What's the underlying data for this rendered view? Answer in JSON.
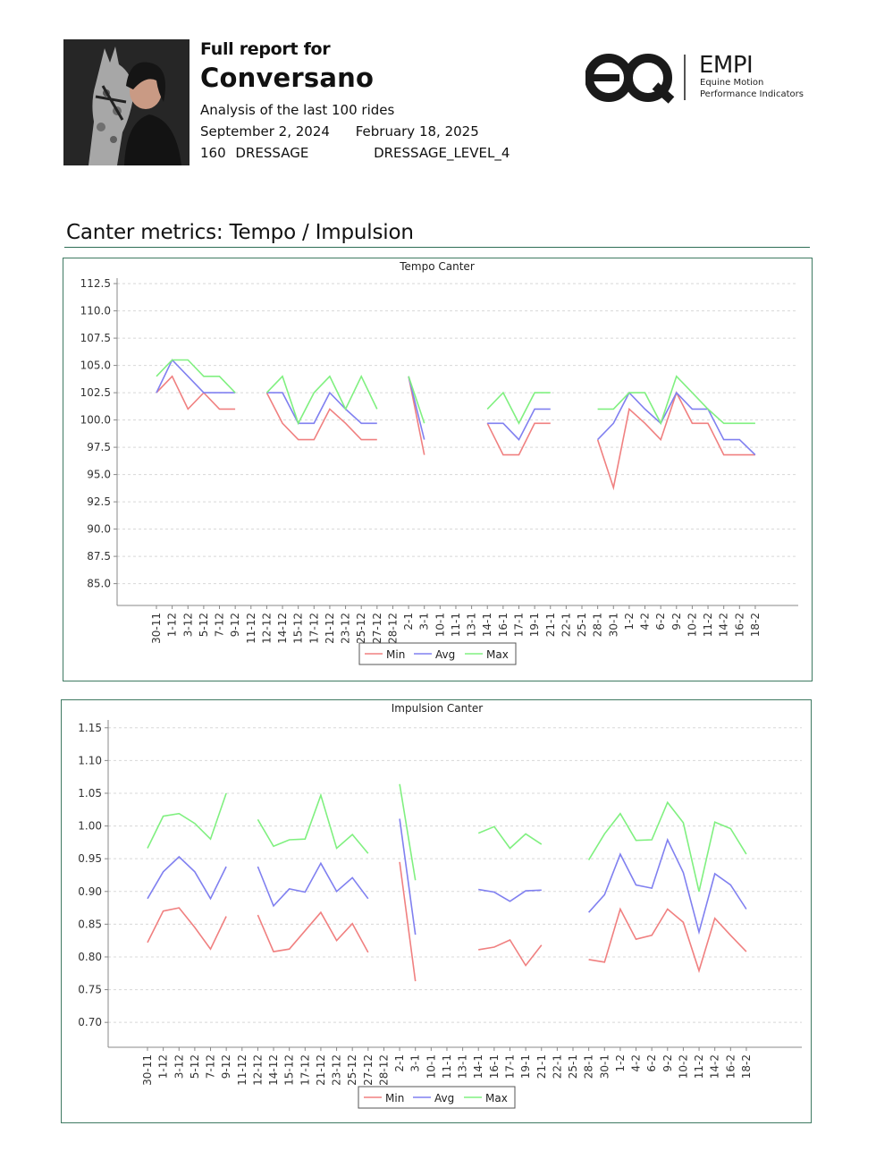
{
  "header": {
    "title_prefix": "Full report for",
    "horse_name": "Conversano",
    "subtitle": "Analysis of the last 100 rides",
    "date_from": "September 2, 2024",
    "date_to": "February 18, 2025",
    "count": "160",
    "discipline": "DRESSAGE",
    "level": "DRESSAGE_LEVEL_4"
  },
  "logo": {
    "mark": "eq",
    "brand": "EMPI",
    "tagline_1": "Equine Motion",
    "tagline_2": "Performance Indicators"
  },
  "section_title": "Canter metrics: Tempo / Impulsion",
  "colors": {
    "min": "#f08080",
    "avg": "#8080f0",
    "max": "#80f080",
    "grid": "#d8d8d8"
  },
  "chart_data": [
    {
      "type": "line",
      "title": "Tempo Canter",
      "categories": [
        "30-11",
        "1-12",
        "3-12",
        "5-12",
        "7-12",
        "9-12",
        "11-12",
        "12-12",
        "14-12",
        "15-12",
        "17-12",
        "21-12",
        "23-12",
        "25-12",
        "27-12",
        "28-12",
        "2-1",
        "3-1",
        "10-1",
        "11-1",
        "13-1",
        "14-1",
        "16-1",
        "17-1",
        "19-1",
        "21-1",
        "22-1",
        "25-1",
        "28-1",
        "30-1",
        "1-2",
        "4-2",
        "6-2",
        "9-2",
        "10-2",
        "11-2",
        "14-2",
        "16-2",
        "18-2"
      ],
      "yticks": [
        "112.5",
        "110.0",
        "107.5",
        "105.0",
        "102.5",
        "100.0",
        "97.5",
        "95.0",
        "92.5",
        "90.0",
        "87.5",
        "85.0"
      ],
      "ylim": [
        83,
        113
      ],
      "legend_position": "bottom",
      "series": [
        {
          "name": "Min",
          "color": "#f08080",
          "values": [
            102.5,
            104.0,
            101.0,
            102.5,
            101.0,
            101.0,
            null,
            102.5,
            99.7,
            98.2,
            98.2,
            101.0,
            99.7,
            98.2,
            98.2,
            null,
            104.0,
            96.8,
            null,
            null,
            null,
            99.7,
            96.8,
            96.8,
            99.7,
            99.7,
            null,
            null,
            98.2,
            93.8,
            101.0,
            99.7,
            98.2,
            102.5,
            99.7,
            99.7,
            96.8,
            96.8,
            96.8
          ]
        },
        {
          "name": "Avg",
          "color": "#8080f0",
          "values": [
            102.5,
            105.5,
            104.0,
            102.5,
            102.5,
            102.5,
            null,
            102.5,
            102.5,
            99.7,
            99.7,
            102.5,
            101.0,
            99.7,
            99.7,
            null,
            104.0,
            98.2,
            null,
            null,
            null,
            99.7,
            99.7,
            98.2,
            101.0,
            101.0,
            null,
            null,
            98.2,
            99.7,
            102.5,
            101.0,
            99.7,
            102.5,
            101.0,
            101.0,
            98.2,
            98.2,
            96.8
          ]
        },
        {
          "name": "Max",
          "color": "#80f080",
          "values": [
            104.0,
            105.5,
            105.5,
            104.0,
            104.0,
            102.5,
            null,
            102.5,
            104.0,
            99.7,
            102.5,
            104.0,
            101.0,
            104.0,
            101.0,
            null,
            104.0,
            99.7,
            null,
            null,
            null,
            101.0,
            102.5,
            99.7,
            102.5,
            102.5,
            null,
            null,
            101.0,
            101.0,
            102.5,
            102.5,
            99.7,
            104.0,
            102.5,
            101.0,
            99.7,
            99.7,
            99.7
          ]
        }
      ]
    },
    {
      "type": "line",
      "title": "Impulsion Canter",
      "categories": [
        "30-11",
        "1-12",
        "3-12",
        "5-12",
        "7-12",
        "9-12",
        "11-12",
        "12-12",
        "14-12",
        "15-12",
        "17-12",
        "21-12",
        "23-12",
        "25-12",
        "27-12",
        "28-12",
        "2-1",
        "3-1",
        "10-1",
        "11-1",
        "13-1",
        "14-1",
        "16-1",
        "17-1",
        "19-1",
        "21-1",
        "22-1",
        "25-1",
        "28-1",
        "30-1",
        "1-2",
        "4-2",
        "6-2",
        "9-2",
        "10-2",
        "11-2",
        "14-2",
        "16-2",
        "18-2"
      ],
      "yticks": [
        "1.15",
        "1.10",
        "1.05",
        "1.00",
        "0.95",
        "0.90",
        "0.85",
        "0.80",
        "0.75",
        "0.70"
      ],
      "ylim": [
        0.662,
        1.162
      ],
      "legend_position": "bottom",
      "series": [
        {
          "name": "Min",
          "color": "#f08080",
          "values": [
            0.822,
            0.87,
            0.875,
            0.845,
            0.812,
            0.862,
            null,
            0.864,
            0.808,
            0.812,
            0.84,
            0.868,
            0.825,
            0.851,
            0.807,
            null,
            0.945,
            0.763,
            null,
            null,
            null,
            0.811,
            0.815,
            0.826,
            0.787,
            0.818,
            null,
            null,
            0.796,
            0.792,
            0.873,
            0.827,
            0.833,
            0.873,
            0.853,
            0.779,
            0.859,
            0.833,
            0.808
          ]
        },
        {
          "name": "Avg",
          "color": "#8080f0",
          "values": [
            0.889,
            0.93,
            0.953,
            0.93,
            0.889,
            0.938,
            null,
            0.938,
            0.878,
            0.904,
            0.899,
            0.943,
            0.9,
            0.921,
            0.889,
            null,
            1.011,
            0.834,
            null,
            null,
            null,
            0.903,
            0.899,
            0.885,
            0.901,
            0.902,
            null,
            null,
            0.868,
            0.895,
            0.957,
            0.91,
            0.905,
            0.979,
            0.929,
            0.838,
            0.927,
            0.91,
            0.873
          ]
        },
        {
          "name": "Max",
          "color": "#80f080",
          "values": [
            0.966,
            1.015,
            1.019,
            1.004,
            0.98,
            1.05,
            null,
            1.01,
            0.969,
            0.979,
            0.98,
            1.047,
            0.966,
            0.987,
            0.958,
            null,
            1.064,
            0.917,
            null,
            null,
            null,
            0.989,
            0.999,
            0.966,
            0.988,
            0.972,
            null,
            null,
            0.948,
            0.988,
            1.019,
            0.978,
            0.979,
            1.036,
            1.005,
            0.9,
            1.006,
            0.996,
            0.957
          ]
        }
      ]
    }
  ]
}
